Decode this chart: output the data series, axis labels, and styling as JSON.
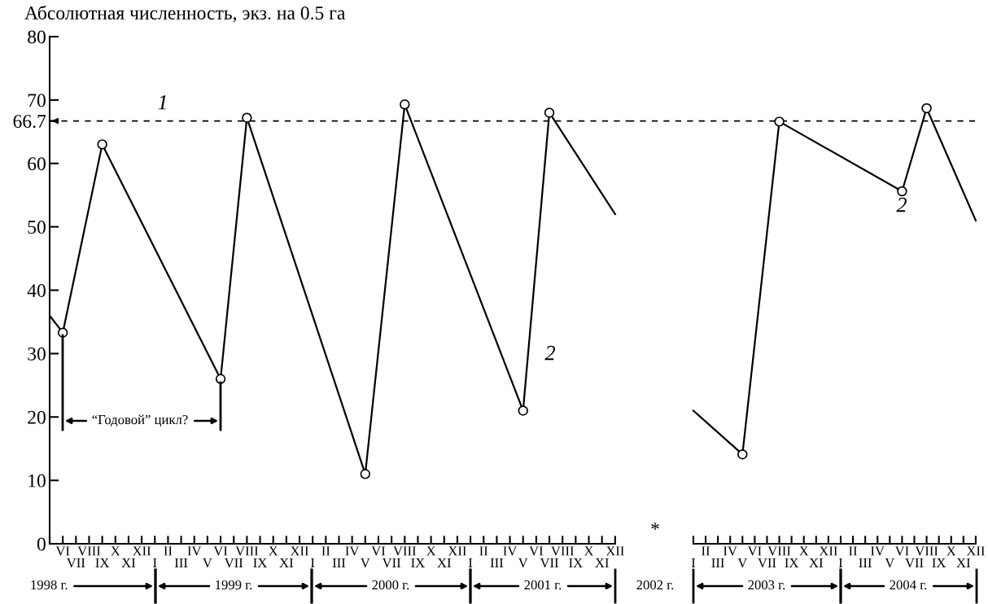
{
  "chart_data": [
    {
      "type": "line",
      "ylabel": "Абсолютная численность, экз. на 0.5 га",
      "ylim": [
        0,
        80
      ],
      "yticks": [
        0,
        10,
        20,
        30,
        40,
        50,
        60,
        66.7,
        70,
        80
      ],
      "categories": [
        null,
        "VI",
        "VII",
        "VIII",
        "IX",
        "X",
        "XI",
        "XII",
        "I",
        "II",
        "III",
        "IV",
        "V",
        "VI",
        "VII",
        "VIII",
        "IX",
        "X",
        "XI",
        "XII",
        "I",
        "II",
        "III",
        "IV",
        "V",
        "VI",
        "VII",
        "VIII",
        "IX",
        "X",
        "XI",
        "XII",
        "I",
        "II",
        "III",
        "IV",
        "V",
        "VI",
        "VII",
        "VIII",
        "IX",
        "X",
        "XI",
        "XII"
      ],
      "series": [
        {
          "color": "#000000",
          "marker": "none",
          "values": [
            36,
            33.3,
            null,
            null,
            63,
            null,
            null,
            null,
            null,
            null,
            null,
            null,
            null,
            26,
            null,
            67.2,
            null,
            null,
            null,
            null,
            null,
            null,
            null,
            null,
            11,
            null,
            null,
            69.3,
            null,
            null,
            null,
            null,
            null,
            null,
            null,
            null,
            21,
            null,
            68,
            null,
            null,
            null,
            null,
            52
          ]
        },
        {
          "type": "scatter",
          "color": "#000000",
          "marker": "circle",
          "values": [
            null,
            33.3,
            null,
            null,
            63,
            null,
            null,
            null,
            null,
            null,
            null,
            null,
            null,
            26,
            null,
            67.2,
            null,
            null,
            null,
            null,
            null,
            null,
            null,
            null,
            11,
            null,
            null,
            69.3,
            null,
            null,
            null,
            null,
            null,
            null,
            null,
            null,
            21,
            null,
            68,
            null,
            null,
            null,
            null,
            null
          ]
        }
      ],
      "ref_lines": [
        {
          "axis": "y",
          "value": 66.7,
          "line_style": "dashed",
          "color": "#000000"
        }
      ],
      "annotations": [
        "1",
        "2",
        "“Годовой” цикл?",
        "1998 г.",
        "1999 г.",
        "2000 г.",
        "2001 г."
      ],
      "grid": false,
      "legend": false
    },
    {
      "type": "line",
      "ylim": [
        0,
        80
      ],
      "tick_labels": "x",
      "categories": [
        "I",
        "II",
        "III",
        "IV",
        "V",
        "VI",
        "VII",
        "VIII",
        "IX",
        "X",
        "XI",
        "XII",
        "I",
        "II",
        "III",
        "IV",
        "V",
        "VI",
        "VII",
        "VIII",
        "IX",
        "X",
        "XI",
        "XII"
      ],
      "series": [
        {
          "color": "#000000",
          "marker": "none",
          "values": [
            21,
            null,
            null,
            null,
            14.1,
            null,
            null,
            66.6,
            null,
            null,
            null,
            null,
            null,
            null,
            null,
            null,
            null,
            55.6,
            null,
            68.7,
            null,
            null,
            null,
            51
          ]
        },
        {
          "type": "scatter",
          "color": "#000000",
          "marker": "circle",
          "values": [
            null,
            null,
            null,
            null,
            14.1,
            null,
            null,
            66.6,
            null,
            null,
            null,
            null,
            null,
            null,
            null,
            null,
            null,
            55.6,
            null,
            68.7,
            null,
            null,
            null,
            null
          ]
        }
      ],
      "ref_lines": [
        {
          "axis": "y",
          "value": 66.7,
          "line_style": "dashed",
          "color": "#000000"
        }
      ],
      "annotations": [
        "*",
        "2002 г.",
        "2",
        "2003 г.",
        "2004 г."
      ],
      "grid": false,
      "legend": false
    }
  ]
}
